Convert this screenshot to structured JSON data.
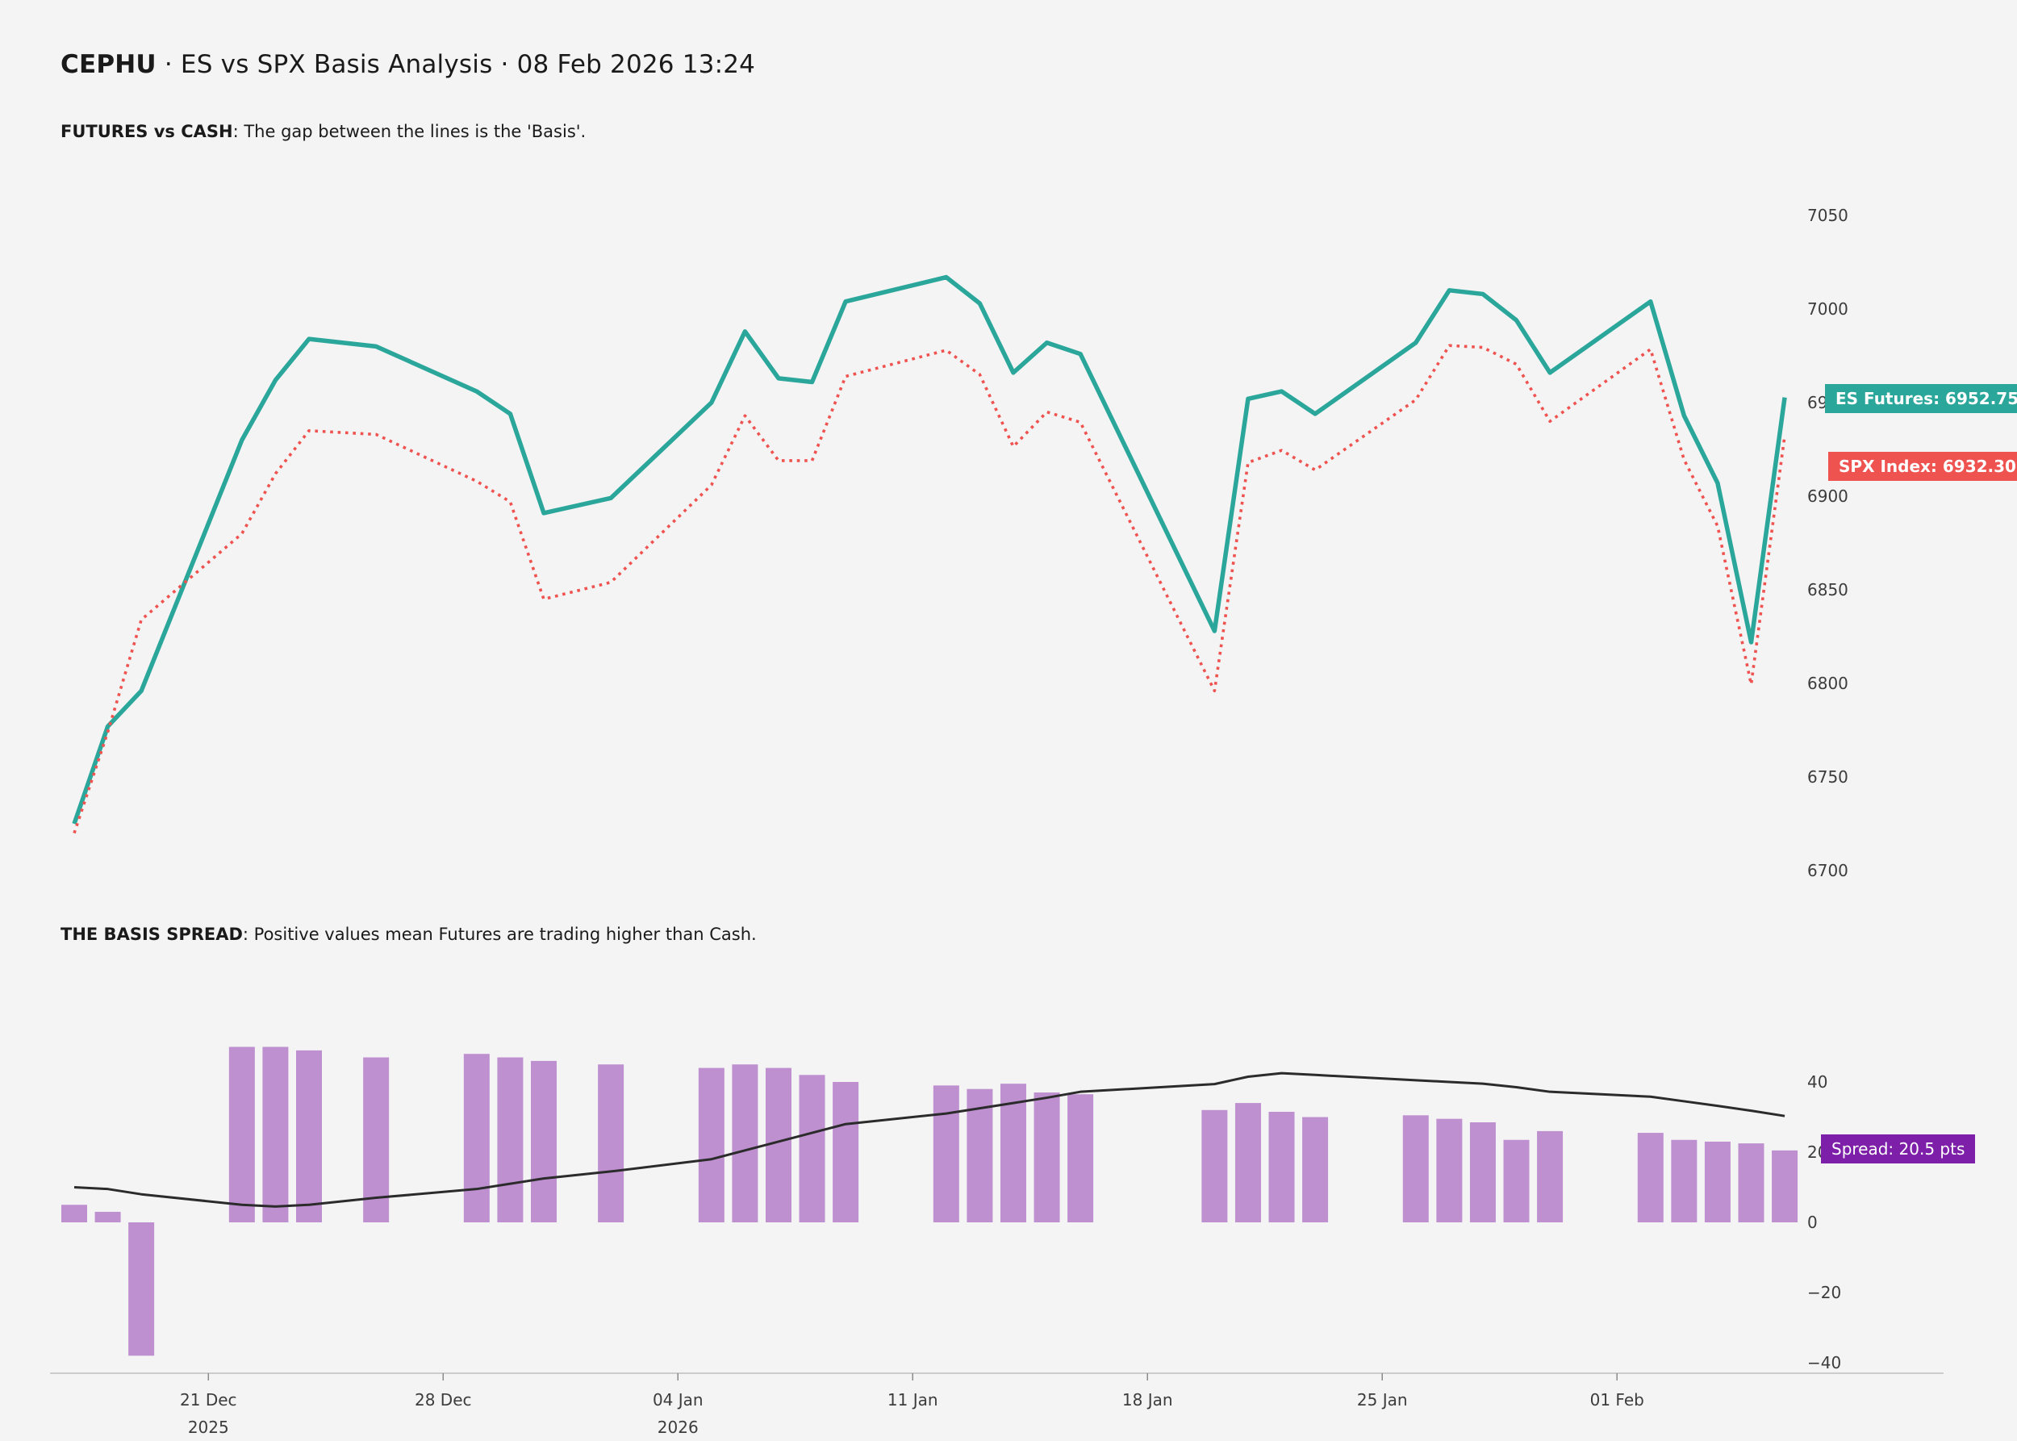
{
  "header": {
    "ticker": "CEPHU",
    "title_rest": " · ES vs SPX Basis Analysis · 08 Feb 2026 13:24"
  },
  "panel_futures": {
    "subtitle_bold": "FUTURES vs CASH",
    "subtitle_rest": ": The gap between the lines is the 'Basis'."
  },
  "panel_basis": {
    "subtitle_bold": "THE BASIS SPREAD",
    "subtitle_rest": ": Positive values mean Futures are trading higher than Cash."
  },
  "float_labels": {
    "es": "ES Futures: 6952.75",
    "spx": "SPX Index: 6932.30",
    "spread": "Spread: 20.5 pts"
  },
  "colors": {
    "background": "#f4f4f5",
    "es_line": "#2aa69a",
    "spx_line": "#ef5350",
    "spread_bar": "#be90d0",
    "ma_line": "#2b2b2b",
    "spread_label_bg": "#7d1fa8",
    "tick_text": "#3c3c3c",
    "axis_spine": "#cccccc",
    "axis_tick": "#8a8a8a"
  },
  "chart_data": [
    {
      "type": "line",
      "title": "FUTURES vs CASH",
      "x": [
        "17 Dec",
        "18 Dec",
        "19 Dec",
        "22 Dec",
        "23 Dec",
        "24 Dec",
        "26 Dec",
        "29 Dec",
        "30 Dec",
        "31 Dec",
        "02 Jan",
        "05 Jan",
        "06 Jan",
        "07 Jan",
        "08 Jan",
        "09 Jan",
        "12 Jan",
        "13 Jan",
        "14 Jan",
        "15 Jan",
        "16 Jan",
        "20 Jan",
        "21 Jan",
        "22 Jan",
        "23 Jan",
        "26 Jan",
        "27 Jan",
        "28 Jan",
        "29 Jan",
        "30 Jan",
        "02 Feb",
        "03 Feb",
        "04 Feb",
        "05 Feb",
        "06 Feb"
      ],
      "day_offsets": [
        0,
        1,
        2,
        5,
        6,
        7,
        9,
        12,
        13,
        14,
        16,
        19,
        20,
        21,
        22,
        23,
        26,
        27,
        28,
        29,
        30,
        34,
        35,
        36,
        37,
        40,
        41,
        42,
        43,
        44,
        47,
        48,
        49,
        50,
        51
      ],
      "series": [
        {
          "name": "ES Futures",
          "style": "solid",
          "color": "#2aa69a",
          "values": [
            6725,
            6777,
            6796,
            6930,
            6962,
            6984,
            6980,
            6956,
            6944,
            6891,
            6899,
            6950,
            6988,
            6963,
            6961,
            7004,
            7017,
            7003,
            6966,
            6982,
            6976,
            6828,
            6952,
            6956,
            6944,
            6982,
            7010,
            7008,
            6994,
            6966,
            7004,
            6943,
            6907,
            6822,
            6952.75
          ]
        },
        {
          "name": "SPX Index",
          "style": "dotted",
          "color": "#ef5350",
          "values": [
            6720,
            6774,
            6834,
            6880,
            6912,
            6935,
            6933,
            6908,
            6897,
            6845,
            6854,
            6906,
            6943,
            6919,
            6919,
            6964,
            6978,
            6965,
            6926.5,
            6945,
            6939.5,
            6796,
            6918,
            6924.5,
            6914,
            6951.5,
            6980.5,
            6979.5,
            6970.5,
            6940,
            6978.5,
            6919.5,
            6884,
            6799.5,
            6932.3
          ]
        }
      ],
      "ylim": [
        6690,
        7060
      ],
      "yticks": [
        7050,
        7000,
        6950,
        6900,
        6850,
        6800,
        6750,
        6700
      ],
      "grid": false,
      "legend_position": "right-attached-labels",
      "last_values": {
        "es": 6952.75,
        "spx": 6932.3
      }
    },
    {
      "type": "bar",
      "title": "THE BASIS SPREAD",
      "unit": "pts",
      "x": [
        "17 Dec",
        "18 Dec",
        "19 Dec",
        "22 Dec",
        "23 Dec",
        "24 Dec",
        "26 Dec",
        "29 Dec",
        "30 Dec",
        "31 Dec",
        "02 Jan",
        "05 Jan",
        "06 Jan",
        "07 Jan",
        "08 Jan",
        "09 Jan",
        "12 Jan",
        "13 Jan",
        "14 Jan",
        "15 Jan",
        "16 Jan",
        "20 Jan",
        "21 Jan",
        "22 Jan",
        "23 Jan",
        "26 Jan",
        "27 Jan",
        "28 Jan",
        "29 Jan",
        "30 Jan",
        "02 Feb",
        "03 Feb",
        "04 Feb",
        "05 Feb",
        "06 Feb"
      ],
      "day_offsets": [
        0,
        1,
        2,
        5,
        6,
        7,
        9,
        12,
        13,
        14,
        16,
        19,
        20,
        21,
        22,
        23,
        26,
        27,
        28,
        29,
        30,
        34,
        35,
        36,
        37,
        40,
        41,
        42,
        43,
        44,
        47,
        48,
        49,
        50,
        51
      ],
      "values": [
        5,
        3,
        -38,
        50,
        50,
        49,
        47,
        48,
        47,
        46,
        45,
        44,
        45,
        44,
        42,
        40,
        39,
        38,
        39.5,
        37,
        36.5,
        32,
        34,
        31.5,
        30,
        30.5,
        29.5,
        28.5,
        23.5,
        26,
        25.5,
        23.5,
        23,
        22.5,
        20.5
      ],
      "ma_line": [
        10,
        9.5,
        8,
        5,
        4.5,
        5,
        7,
        9.5,
        11,
        12.5,
        14.5,
        18,
        20.5,
        23,
        25.5,
        28,
        31,
        32.5,
        34,
        35.5,
        37.2,
        39.4,
        41.5,
        42.5,
        42,
        40.5,
        40,
        39.5,
        38.5,
        37.2,
        35.8,
        34.5,
        33.2,
        31.8,
        30.3
      ],
      "ylim": [
        -45,
        58
      ],
      "yticks_labels": [
        "40",
        "20",
        "0",
        "−20",
        "−40"
      ],
      "yticks_values": [
        40,
        20,
        0,
        -20,
        -40
      ],
      "grid": false,
      "last_value": 20.5
    }
  ],
  "x_axis": {
    "ticks": [
      {
        "label": "21 Dec",
        "year": "2025",
        "offset": 4
      },
      {
        "label": "28 Dec",
        "year": "",
        "offset": 11
      },
      {
        "label": "04 Jan",
        "year": "2026",
        "offset": 18
      },
      {
        "label": "11 Jan",
        "year": "",
        "offset": 25
      },
      {
        "label": "18 Jan",
        "year": "",
        "offset": 32
      },
      {
        "label": "25 Jan",
        "year": "",
        "offset": 39
      },
      {
        "label": "01 Feb",
        "year": "",
        "offset": 46
      }
    ]
  }
}
